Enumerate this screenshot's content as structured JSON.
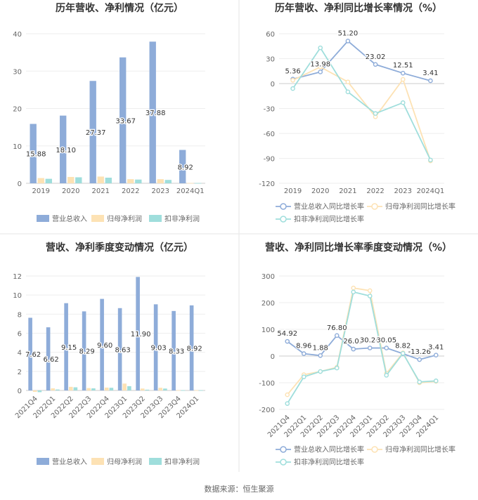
{
  "footer": "数据来源：恒生聚源",
  "legend_labels": {
    "revenue": "营业总收入",
    "net_profit": "归母净利润",
    "deducted_profit": "扣非净利润",
    "revenue_yoy": "营业总收入同比增长率",
    "net_profit_yoy": "归母净利润同比增长率",
    "deducted_yoy": "扣非净利润同比增长率"
  },
  "colors": {
    "revenue": "#8eacd9",
    "net_profit": "#fde2b4",
    "deducted_profit": "#9fdedc"
  },
  "chart_data": [
    {
      "type": "bar",
      "title": "历年营收、净利情况（亿元）",
      "categories": [
        "2019",
        "2020",
        "2021",
        "2022",
        "2023",
        "2024Q1"
      ],
      "ylim": [
        0,
        40
      ],
      "yticks": [
        0,
        10,
        20,
        30,
        40
      ],
      "series": [
        {
          "name": "营业总收入",
          "values": [
            15.88,
            18.1,
            27.37,
            33.67,
            37.88,
            8.92
          ],
          "labels": [
            "15.88",
            "18.10",
            "27.37",
            "33.67",
            "37.88",
            "8.92"
          ]
        },
        {
          "name": "归母净利润",
          "values": [
            1.4,
            1.7,
            1.8,
            1.1,
            1.1,
            0.08
          ]
        },
        {
          "name": "扣非净利润",
          "values": [
            1.2,
            1.6,
            1.5,
            1.0,
            0.9,
            0.07
          ]
        }
      ],
      "legend": "bottom",
      "grid": true
    },
    {
      "type": "line",
      "title": "历年营收、净利同比增长率情况（%）",
      "categories": [
        "2019",
        "2020",
        "2021",
        "2022",
        "2023",
        "2024Q1"
      ],
      "ylim": [
        -120,
        60
      ],
      "yticks": [
        -120,
        -90,
        -60,
        -30,
        0,
        30,
        60
      ],
      "series": [
        {
          "name": "营业总收入同比增长率",
          "values": [
            5.36,
            13.98,
            51.2,
            23.02,
            12.51,
            3.41
          ],
          "labels": [
            "5.36",
            "13.98",
            "51.20",
            "23.02",
            "12.51",
            "3.41"
          ]
        },
        {
          "name": "归母净利润同比增长率",
          "values": [
            4,
            20,
            2,
            -40,
            5,
            -93
          ]
        },
        {
          "name": "扣非净利润同比增长率",
          "values": [
            -6,
            43,
            -10,
            -36,
            -23,
            -92
          ]
        }
      ],
      "legend": "bottom",
      "grid": true
    },
    {
      "type": "bar",
      "title": "营收、净利季度变动情况（亿元）",
      "categories": [
        "2021Q4",
        "2022Q1",
        "2022Q2",
        "2022Q3",
        "2022Q4",
        "2023Q1",
        "2023Q2",
        "2023Q3",
        "2023Q4",
        "2024Q1"
      ],
      "ylim": [
        0,
        12
      ],
      "yticks": [
        0,
        2,
        4,
        6,
        8,
        10,
        12
      ],
      "series": [
        {
          "name": "营业总收入",
          "values": [
            7.62,
            6.62,
            9.15,
            8.29,
            9.6,
            8.63,
            11.9,
            9.03,
            8.33,
            8.92
          ],
          "labels": [
            "7.62",
            "6.62",
            "9.15",
            "8.29",
            "9.60",
            "8.63",
            "11.90",
            "9.03",
            "8.33",
            "8.92"
          ]
        },
        {
          "name": "归母净利润",
          "values": [
            -0.15,
            0.22,
            0.38,
            0.25,
            0.3,
            0.72,
            0.2,
            0.28,
            0.02,
            0.02
          ]
        },
        {
          "name": "扣非净利润",
          "values": [
            -0.18,
            0.1,
            0.33,
            0.22,
            0.28,
            0.45,
            0.08,
            0.2,
            0.02,
            0.02
          ]
        }
      ],
      "legend": "bottom",
      "grid": true
    },
    {
      "type": "line",
      "title": "营收、净利同比增长率季度变动情况（%）",
      "categories": [
        "2021Q4",
        "2022Q1",
        "2022Q2",
        "2022Q3",
        "2022Q4",
        "2023Q1",
        "2023Q2",
        "2023Q3",
        "2023Q4",
        "2024Q1"
      ],
      "ylim": [
        -200,
        300
      ],
      "yticks": [
        -200,
        -100,
        0,
        100,
        200,
        300
      ],
      "series": [
        {
          "name": "营业总收入同比增长率",
          "values": [
            54.92,
            8.96,
            1.88,
            76.8,
            26.03,
            30.24,
            30.05,
            8.82,
            -13.26,
            3.41
          ],
          "labels": [
            "54.92",
            "8.96",
            "1.88",
            "76.80",
            "26.03",
            "30.24",
            "30.05",
            "8.82",
            "-13.26",
            "3.41"
          ]
        },
        {
          "name": "归母净利润同比增长率",
          "values": [
            -145,
            -70,
            -58,
            -42,
            255,
            245,
            -65,
            12,
            -100,
            -95
          ]
        },
        {
          "name": "扣非净利润同比增长率",
          "values": [
            -178,
            -78,
            -58,
            -45,
            240,
            225,
            -72,
            10,
            -97,
            -93
          ]
        }
      ],
      "legend": "bottom",
      "grid": true
    }
  ]
}
